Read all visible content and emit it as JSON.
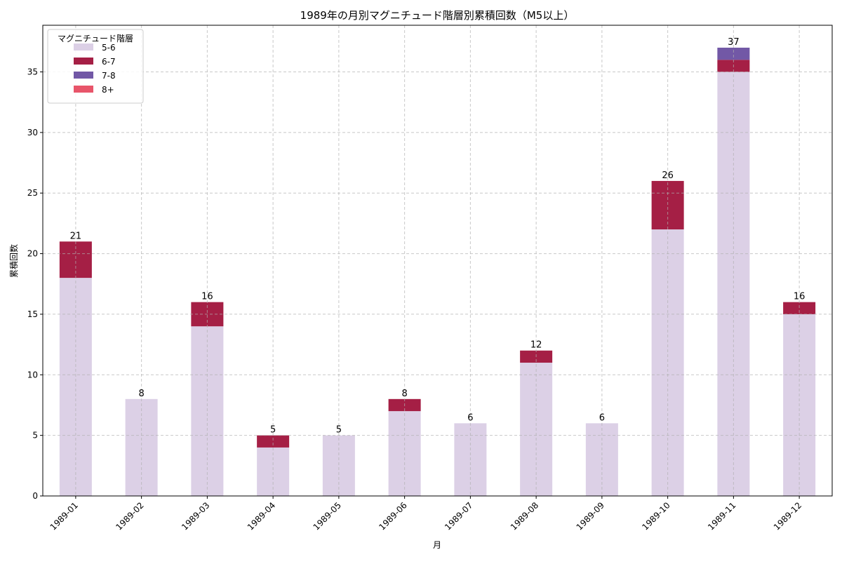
{
  "chart_data": {
    "type": "bar",
    "stacked": true,
    "title": "1989年の月別マグニチュード階層別累積回数（M5以上）",
    "xlabel": "月",
    "ylabel": "累積回数",
    "categories": [
      "1989-01",
      "1989-02",
      "1989-03",
      "1989-04",
      "1989-05",
      "1989-06",
      "1989-07",
      "1989-08",
      "1989-09",
      "1989-10",
      "1989-11",
      "1989-12"
    ],
    "series": [
      {
        "name": "5-6",
        "color": "#dcd0e6",
        "values": [
          18,
          8,
          14,
          4,
          5,
          7,
          6,
          11,
          6,
          22,
          35,
          15
        ]
      },
      {
        "name": "6-7",
        "color": "#a51f45",
        "values": [
          3,
          0,
          2,
          1,
          0,
          1,
          0,
          1,
          0,
          4,
          1,
          1
        ]
      },
      {
        "name": "7-8",
        "color": "#7258a6",
        "values": [
          0,
          0,
          0,
          0,
          0,
          0,
          0,
          0,
          0,
          0,
          1,
          0
        ]
      },
      {
        "name": "8+",
        "color": "#e8556a",
        "values": [
          0,
          0,
          0,
          0,
          0,
          0,
          0,
          0,
          0,
          0,
          0,
          0
        ]
      }
    ],
    "totals": [
      21,
      8,
      16,
      5,
      5,
      8,
      6,
      12,
      6,
      26,
      37,
      16
    ],
    "yticks": [
      0,
      5,
      10,
      15,
      20,
      25,
      30,
      35
    ],
    "ylim": [
      0,
      38.85
    ],
    "grid": true,
    "legend": {
      "title": "マグニチュード階層",
      "placement": "top-left"
    }
  }
}
